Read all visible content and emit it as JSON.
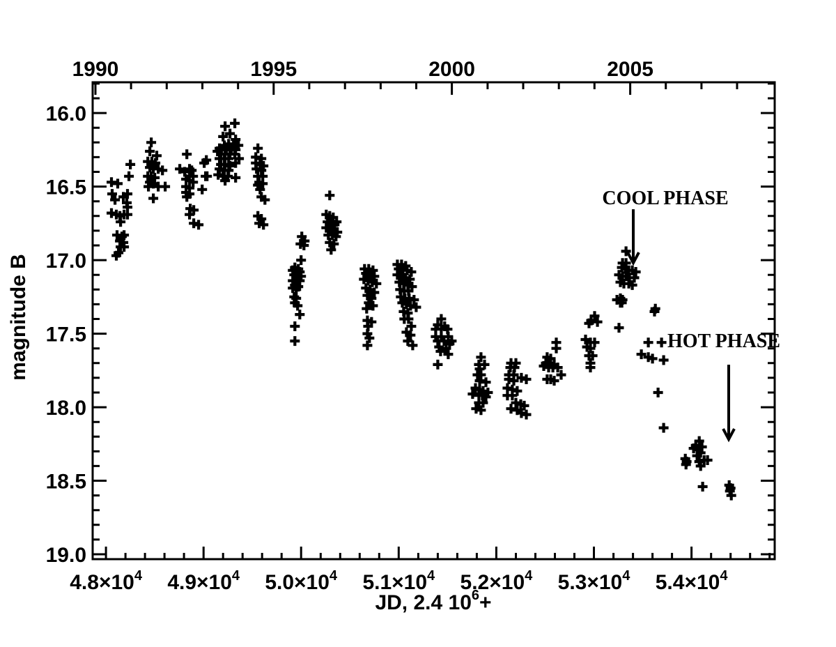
{
  "figure": {
    "background": "#ffffff",
    "ink": "#000000"
  },
  "chart_data": {
    "type": "scatter",
    "marker": "plus",
    "title": "",
    "ylabel": "magnitude B",
    "xlabel_parts": {
      "prefix": "JD, 2.4 10",
      "superscript": "6",
      "suffix": "+"
    },
    "x_axis": {
      "lim": [
        47864,
        54852
      ],
      "times_base": "×10",
      "exponent": "4",
      "minor_step": 200,
      "major_ticks": [
        {
          "value": 48000,
          "mantissa": "4.8"
        },
        {
          "value": 49000,
          "mantissa": "4.9"
        },
        {
          "value": 50000,
          "mantissa": "5.0"
        },
        {
          "value": 51000,
          "mantissa": "5.1"
        },
        {
          "value": 52000,
          "mantissa": "5.2"
        },
        {
          "value": 53000,
          "mantissa": "5.3"
        },
        {
          "value": 54000,
          "mantissa": "5.4"
        }
      ]
    },
    "top_axis": {
      "unit": "year",
      "major_years": [
        1990,
        1995,
        2000,
        2005
      ],
      "minor_year_start": 1990,
      "minor_year_end": 2008
    },
    "y_axis": {
      "lim": [
        15.791,
        19.033
      ],
      "major_step": 0.5,
      "minor_step": 0.1,
      "major_labels": [
        "16.0",
        "16.5",
        "17.0",
        "17.5",
        "18.0",
        "18.5",
        "19.0"
      ],
      "grid": false
    },
    "legend": null,
    "annotations": [
      {
        "label": "COOL PHASE",
        "text_jd": 53731,
        "text_mag": 16.62,
        "arrow_jd": 53403,
        "arrow_mag_from": 16.654,
        "arrow_mag_to": 17.019
      },
      {
        "label": "HOT PHASE",
        "text_jd": 54331,
        "text_mag": 17.593,
        "arrow_jd": 54381,
        "arrow_mag_from": 17.711,
        "arrow_mag_to": 18.218
      }
    ],
    "points": [
      [
        48057,
        16.47
      ],
      [
        48121,
        16.48
      ],
      [
        48064,
        16.55
      ],
      [
        48093,
        16.59
      ],
      [
        48179,
        16.57
      ],
      [
        48221,
        16.55
      ],
      [
        48057,
        16.68
      ],
      [
        48107,
        16.69
      ],
      [
        48143,
        16.7
      ],
      [
        48186,
        16.69
      ],
      [
        48221,
        16.69
      ],
      [
        48150,
        16.74
      ],
      [
        48214,
        16.61
      ],
      [
        48221,
        16.64
      ],
      [
        48114,
        16.83
      ],
      [
        48164,
        16.84
      ],
      [
        48186,
        16.83
      ],
      [
        48143,
        16.87
      ],
      [
        48179,
        16.88
      ],
      [
        48150,
        16.91
      ],
      [
        48186,
        16.91
      ],
      [
        48129,
        16.95
      ],
      [
        48107,
        16.97
      ],
      [
        48250,
        16.35
      ],
      [
        48236,
        16.43
      ],
      [
        48464,
        16.2
      ],
      [
        48450,
        16.26
      ],
      [
        48521,
        16.29
      ],
      [
        48429,
        16.33
      ],
      [
        48471,
        16.33
      ],
      [
        48507,
        16.34
      ],
      [
        48450,
        16.37
      ],
      [
        48486,
        16.38
      ],
      [
        48536,
        16.38
      ],
      [
        48579,
        16.39
      ],
      [
        48429,
        16.43
      ],
      [
        48464,
        16.43
      ],
      [
        48500,
        16.44
      ],
      [
        48450,
        16.47
      ],
      [
        48486,
        16.48
      ],
      [
        48536,
        16.5
      ],
      [
        48607,
        16.5
      ],
      [
        48436,
        16.5
      ],
      [
        48486,
        16.58
      ],
      [
        48829,
        16.28
      ],
      [
        48757,
        16.38
      ],
      [
        48807,
        16.4
      ],
      [
        48857,
        16.38
      ],
      [
        48879,
        16.39
      ],
      [
        48857,
        16.43
      ],
      [
        48893,
        16.43
      ],
      [
        48821,
        16.45
      ],
      [
        48857,
        16.46
      ],
      [
        48893,
        16.47
      ],
      [
        48821,
        16.5
      ],
      [
        48857,
        16.51
      ],
      [
        48821,
        16.54
      ],
      [
        48857,
        16.55
      ],
      [
        48829,
        16.57
      ],
      [
        49007,
        16.34
      ],
      [
        49021,
        16.43
      ],
      [
        48986,
        16.52
      ],
      [
        48864,
        16.65
      ],
      [
        48900,
        16.66
      ],
      [
        48857,
        16.69
      ],
      [
        48900,
        16.75
      ],
      [
        48950,
        16.76
      ],
      [
        49029,
        16.32
      ],
      [
        49036,
        16.43
      ],
      [
        49221,
        16.09
      ],
      [
        49321,
        16.07
      ],
      [
        49200,
        16.16
      ],
      [
        49271,
        16.14
      ],
      [
        49329,
        16.18
      ],
      [
        49164,
        16.24
      ],
      [
        49214,
        16.22
      ],
      [
        49257,
        16.21
      ],
      [
        49307,
        16.21
      ],
      [
        49357,
        16.22
      ],
      [
        49143,
        16.26
      ],
      [
        49186,
        16.25
      ],
      [
        49236,
        16.25
      ],
      [
        49286,
        16.25
      ],
      [
        49329,
        16.25
      ],
      [
        49179,
        16.28
      ],
      [
        49221,
        16.28
      ],
      [
        49271,
        16.28
      ],
      [
        49321,
        16.28
      ],
      [
        49164,
        16.31
      ],
      [
        49214,
        16.31
      ],
      [
        49257,
        16.31
      ],
      [
        49364,
        16.31
      ],
      [
        49179,
        16.35
      ],
      [
        49221,
        16.35
      ],
      [
        49271,
        16.36
      ],
      [
        49329,
        16.34
      ],
      [
        49164,
        16.38
      ],
      [
        49214,
        16.39
      ],
      [
        49257,
        16.39
      ],
      [
        49150,
        16.42
      ],
      [
        49200,
        16.43
      ],
      [
        49250,
        16.43
      ],
      [
        49329,
        16.44
      ],
      [
        49221,
        16.46
      ],
      [
        49557,
        16.24
      ],
      [
        49536,
        16.3
      ],
      [
        49593,
        16.31
      ],
      [
        49536,
        16.34
      ],
      [
        49579,
        16.35
      ],
      [
        49614,
        16.36
      ],
      [
        49543,
        16.38
      ],
      [
        49593,
        16.39
      ],
      [
        49557,
        16.43
      ],
      [
        49607,
        16.43
      ],
      [
        49571,
        16.47
      ],
      [
        49607,
        16.48
      ],
      [
        49579,
        16.52
      ],
      [
        49557,
        16.49
      ],
      [
        49593,
        16.57
      ],
      [
        49629,
        16.59
      ],
      [
        49557,
        16.7
      ],
      [
        49593,
        16.72
      ],
      [
        49571,
        16.75
      ],
      [
        49614,
        16.76
      ],
      [
        50007,
        16.84
      ],
      [
        50036,
        16.87
      ],
      [
        49993,
        16.89
      ],
      [
        50029,
        16.9
      ],
      [
        50000,
        17.0
      ],
      [
        49936,
        17.05
      ],
      [
        49971,
        17.06
      ],
      [
        49914,
        17.07
      ],
      [
        49950,
        17.08
      ],
      [
        49986,
        17.08
      ],
      [
        49929,
        17.1
      ],
      [
        49964,
        17.11
      ],
      [
        50000,
        17.11
      ],
      [
        49914,
        17.14
      ],
      [
        49950,
        17.14
      ],
      [
        49986,
        17.14
      ],
      [
        49936,
        17.17
      ],
      [
        49971,
        17.18
      ],
      [
        49914,
        17.19
      ],
      [
        49950,
        17.2
      ],
      [
        49929,
        17.25
      ],
      [
        49950,
        17.26
      ],
      [
        49936,
        17.29
      ],
      [
        49964,
        17.31
      ],
      [
        49986,
        17.37
      ],
      [
        49936,
        17.45
      ],
      [
        49936,
        17.55
      ],
      [
        50293,
        16.56
      ],
      [
        50257,
        16.69
      ],
      [
        50293,
        16.7
      ],
      [
        50329,
        16.71
      ],
      [
        50271,
        16.74
      ],
      [
        50307,
        16.75
      ],
      [
        50343,
        16.76
      ],
      [
        50364,
        16.74
      ],
      [
        50257,
        16.78
      ],
      [
        50293,
        16.79
      ],
      [
        50336,
        16.8
      ],
      [
        50371,
        16.81
      ],
      [
        50279,
        16.83
      ],
      [
        50321,
        16.83
      ],
      [
        50357,
        16.84
      ],
      [
        50293,
        16.88
      ],
      [
        50336,
        16.89
      ],
      [
        50307,
        16.93
      ],
      [
        50650,
        17.06
      ],
      [
        50693,
        17.06
      ],
      [
        50736,
        17.07
      ],
      [
        50664,
        17.09
      ],
      [
        50707,
        17.1
      ],
      [
        50750,
        17.11
      ],
      [
        50643,
        17.13
      ],
      [
        50686,
        17.14
      ],
      [
        50729,
        17.15
      ],
      [
        50771,
        17.16
      ],
      [
        50664,
        17.19
      ],
      [
        50707,
        17.2
      ],
      [
        50750,
        17.22
      ],
      [
        50679,
        17.24
      ],
      [
        50721,
        17.26
      ],
      [
        50693,
        17.29
      ],
      [
        50736,
        17.31
      ],
      [
        50671,
        17.33
      ],
      [
        50679,
        17.41
      ],
      [
        50721,
        17.42
      ],
      [
        50686,
        17.45
      ],
      [
        50679,
        17.5
      ],
      [
        50700,
        17.53
      ],
      [
        50679,
        17.58
      ],
      [
        50986,
        17.03
      ],
      [
        51029,
        17.03
      ],
      [
        51071,
        17.04
      ],
      [
        51000,
        17.06
      ],
      [
        51043,
        17.07
      ],
      [
        51086,
        17.07
      ],
      [
        51129,
        17.08
      ],
      [
        50986,
        17.1
      ],
      [
        51029,
        17.11
      ],
      [
        51071,
        17.12
      ],
      [
        51114,
        17.13
      ],
      [
        51007,
        17.15
      ],
      [
        51050,
        17.16
      ],
      [
        51093,
        17.17
      ],
      [
        51136,
        17.18
      ],
      [
        51014,
        17.2
      ],
      [
        51057,
        17.21
      ],
      [
        51100,
        17.21
      ],
      [
        51021,
        17.25
      ],
      [
        51064,
        17.26
      ],
      [
        51107,
        17.26
      ],
      [
        51157,
        17.27
      ],
      [
        51036,
        17.29
      ],
      [
        51079,
        17.3
      ],
      [
        51121,
        17.31
      ],
      [
        51179,
        17.32
      ],
      [
        51050,
        17.35
      ],
      [
        51093,
        17.36
      ],
      [
        51057,
        17.4
      ],
      [
        51100,
        17.4
      ],
      [
        51129,
        17.45
      ],
      [
        51079,
        17.49
      ],
      [
        51121,
        17.51
      ],
      [
        51093,
        17.55
      ],
      [
        51143,
        17.58
      ],
      [
        51436,
        17.4
      ],
      [
        51400,
        17.44
      ],
      [
        51471,
        17.45
      ],
      [
        51379,
        17.47
      ],
      [
        51436,
        17.47
      ],
      [
        51500,
        17.47
      ],
      [
        51379,
        17.52
      ],
      [
        51436,
        17.52
      ],
      [
        51507,
        17.52
      ],
      [
        51543,
        17.55
      ],
      [
        51400,
        17.55
      ],
      [
        51464,
        17.55
      ],
      [
        51521,
        17.57
      ],
      [
        51414,
        17.59
      ],
      [
        51486,
        17.6
      ],
      [
        51507,
        17.64
      ],
      [
        51429,
        17.62
      ],
      [
        51400,
        17.71
      ],
      [
        51843,
        17.66
      ],
      [
        51821,
        17.71
      ],
      [
        51879,
        17.71
      ],
      [
        51829,
        17.74
      ],
      [
        51807,
        17.78
      ],
      [
        51843,
        17.78
      ],
      [
        51829,
        17.82
      ],
      [
        51893,
        17.83
      ],
      [
        51786,
        17.87
      ],
      [
        51829,
        17.88
      ],
      [
        51864,
        17.89
      ],
      [
        51914,
        17.9
      ],
      [
        51757,
        17.91
      ],
      [
        51821,
        17.92
      ],
      [
        51857,
        17.92
      ],
      [
        51893,
        17.93
      ],
      [
        51821,
        17.97
      ],
      [
        51864,
        17.97
      ],
      [
        51793,
        18.01
      ],
      [
        51843,
        18.02
      ],
      [
        52150,
        17.7
      ],
      [
        52200,
        17.7
      ],
      [
        52143,
        17.73
      ],
      [
        52186,
        17.73
      ],
      [
        52129,
        17.78
      ],
      [
        52179,
        17.78
      ],
      [
        52257,
        17.8
      ],
      [
        52307,
        17.81
      ],
      [
        52129,
        17.81
      ],
      [
        52179,
        17.82
      ],
      [
        52114,
        17.87
      ],
      [
        52164,
        17.88
      ],
      [
        52214,
        17.89
      ],
      [
        52114,
        17.92
      ],
      [
        52164,
        17.92
      ],
      [
        52200,
        17.97
      ],
      [
        52250,
        17.98
      ],
      [
        52286,
        17.99
      ],
      [
        52150,
        18.01
      ],
      [
        52214,
        18.02
      ],
      [
        52257,
        18.04
      ],
      [
        52307,
        18.05
      ],
      [
        52614,
        17.56
      ],
      [
        52614,
        17.6
      ],
      [
        52521,
        17.66
      ],
      [
        52557,
        17.67
      ],
      [
        52507,
        17.7
      ],
      [
        52543,
        17.7
      ],
      [
        52593,
        17.71
      ],
      [
        52486,
        17.72
      ],
      [
        52536,
        17.73
      ],
      [
        52579,
        17.73
      ],
      [
        52629,
        17.73
      ],
      [
        52664,
        17.78
      ],
      [
        52521,
        17.81
      ],
      [
        52557,
        17.81
      ],
      [
        52593,
        17.82
      ],
      [
        53007,
        17.38
      ],
      [
        52971,
        17.41
      ],
      [
        53036,
        17.42
      ],
      [
        52950,
        17.43
      ],
      [
        52914,
        17.54
      ],
      [
        52964,
        17.56
      ],
      [
        53007,
        17.56
      ],
      [
        52929,
        17.59
      ],
      [
        52964,
        17.6
      ],
      [
        52950,
        17.65
      ],
      [
        52986,
        17.65
      ],
      [
        52964,
        17.7
      ],
      [
        52964,
        17.73
      ],
      [
        53236,
        17.27
      ],
      [
        53271,
        17.29
      ],
      [
        53271,
        17.26
      ],
      [
        53293,
        17.27
      ],
      [
        53286,
        17.29
      ],
      [
        53257,
        17.46
      ],
      [
        53329,
        16.94
      ],
      [
        53293,
        17.02
      ],
      [
        53329,
        17.02
      ],
      [
        53286,
        17.05
      ],
      [
        53321,
        17.06
      ],
      [
        53357,
        17.07
      ],
      [
        53393,
        17.07
      ],
      [
        53429,
        17.08
      ],
      [
        53257,
        17.1
      ],
      [
        53293,
        17.11
      ],
      [
        53329,
        17.11
      ],
      [
        53364,
        17.12
      ],
      [
        53414,
        17.12
      ],
      [
        53271,
        17.15
      ],
      [
        53307,
        17.16
      ],
      [
        53357,
        17.16
      ],
      [
        53393,
        17.17
      ],
      [
        53629,
        17.33
      ],
      [
        53621,
        17.35
      ],
      [
        53557,
        17.56
      ],
      [
        53693,
        17.56
      ],
      [
        53486,
        17.64
      ],
      [
        53557,
        17.66
      ],
      [
        53600,
        17.67
      ],
      [
        53714,
        17.68
      ],
      [
        53657,
        17.9
      ],
      [
        53714,
        18.14
      ],
      [
        54079,
        18.23
      ],
      [
        54043,
        18.26
      ],
      [
        54107,
        18.27
      ],
      [
        54021,
        18.28
      ],
      [
        54071,
        18.29
      ],
      [
        54093,
        18.31
      ],
      [
        54057,
        18.33
      ],
      [
        54129,
        18.36
      ],
      [
        54164,
        18.36
      ],
      [
        54079,
        18.37
      ],
      [
        54093,
        18.4
      ],
      [
        53936,
        18.35
      ],
      [
        53950,
        18.37
      ],
      [
        53943,
        18.39
      ],
      [
        54114,
        18.54
      ],
      [
        54386,
        18.53
      ],
      [
        54400,
        18.55
      ],
      [
        54393,
        18.57
      ],
      [
        54407,
        18.6
      ]
    ]
  }
}
